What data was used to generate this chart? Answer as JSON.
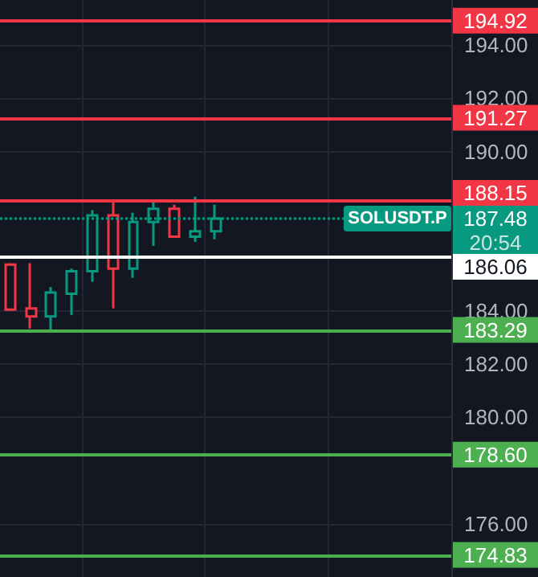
{
  "chart_data": {
    "type": "candlestick",
    "categories": [
      null,
      null,
      null,
      null,
      null,
      null,
      null,
      null,
      null,
      null,
      null,
      null,
      null,
      null,
      null,
      null,
      null,
      null,
      null,
      null,
      null,
      null
    ],
    "ohlc": [
      [
        185.75,
        185.8,
        184.0,
        184.06
      ],
      [
        184.1,
        185.8,
        183.35,
        183.8
      ],
      [
        183.8,
        184.9,
        183.25,
        184.7
      ],
      [
        184.65,
        185.6,
        183.85,
        185.5
      ],
      [
        185.5,
        187.8,
        185.1,
        187.6
      ],
      [
        187.6,
        188.15,
        184.1,
        185.6
      ],
      [
        185.6,
        187.7,
        185.25,
        187.35
      ],
      [
        187.35,
        188.1,
        186.45,
        187.85
      ],
      [
        187.85,
        188.0,
        186.8,
        186.8
      ],
      [
        186.8,
        188.3,
        186.6,
        187.0
      ],
      [
        187.0,
        188.0,
        186.7,
        187.48
      ],
      null,
      null,
      null,
      null,
      null,
      null,
      null,
      null,
      null,
      null,
      null
    ],
    "colors": [
      "#f23645",
      "#f23645",
      "#089981",
      "#089981",
      "#089981",
      "#f23645",
      "#089981",
      "#089981",
      "#f23645",
      "#089981",
      "#089981",
      null,
      null,
      null,
      null,
      null,
      null,
      null,
      null,
      null,
      null,
      null
    ],
    "ylim": [
      174.0,
      195.7
    ],
    "yticks": [
      {
        "value": 176,
        "label": "176.00"
      },
      {
        "value": 180,
        "label": "180.00"
      },
      {
        "value": 182,
        "label": "182.00"
      },
      {
        "value": 184,
        "label": "184.00"
      },
      {
        "value": 190,
        "label": "190.00"
      },
      {
        "value": 192,
        "label": "192.00"
      },
      {
        "value": 194,
        "label": "194.00"
      }
    ],
    "grid": true,
    "ref_lines": [
      {
        "axis": "y",
        "value": 194.92,
        "color": "#f23645",
        "label": "194.92"
      },
      {
        "axis": "y",
        "value": 191.27,
        "color": "#f23645",
        "label": "191.27"
      },
      {
        "axis": "y",
        "value": 188.15,
        "color": "#f23645",
        "label": "188.15"
      },
      {
        "axis": "y",
        "value": 187.48,
        "color": "#089981",
        "line_style": "dotted",
        "label": "SOLUSDT.P"
      },
      {
        "axis": "y",
        "value": 186.06,
        "color": "#ffffff",
        "label": "186.06"
      },
      {
        "axis": "y",
        "value": 183.29,
        "color": "#4caf50",
        "label": "183.29"
      },
      {
        "axis": "y",
        "value": 178.6,
        "color": "#4caf50",
        "label": "178.60"
      },
      {
        "axis": "y",
        "value": 174.83,
        "color": "#4caf50",
        "label": "174.83"
      }
    ],
    "annotations": [
      "187.48",
      "20:54"
    ]
  }
}
